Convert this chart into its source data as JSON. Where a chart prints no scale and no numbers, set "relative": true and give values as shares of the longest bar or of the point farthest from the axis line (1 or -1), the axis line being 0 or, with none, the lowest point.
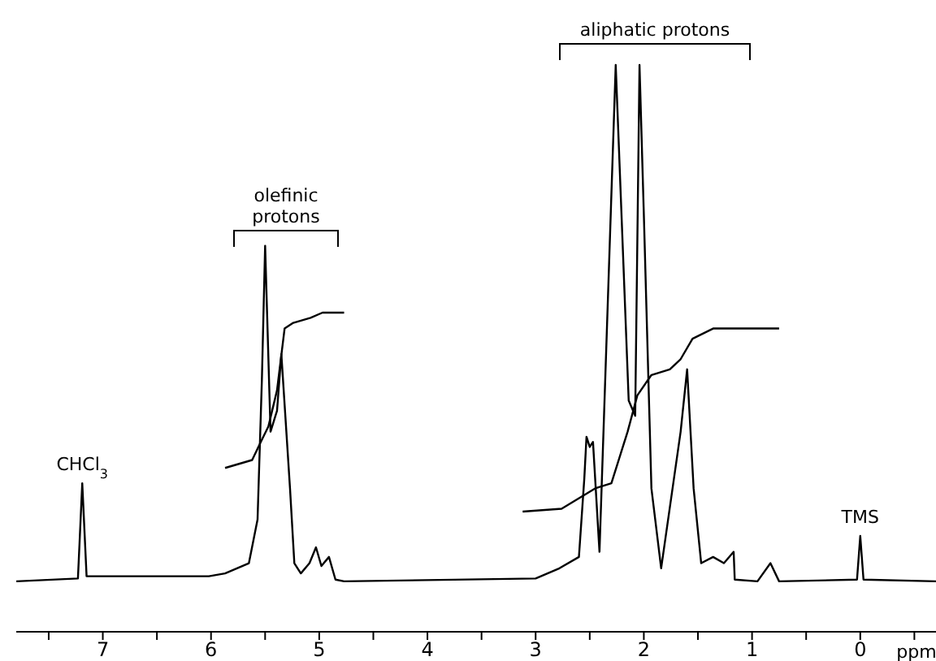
{
  "chart_data": {
    "type": "line",
    "relative": true,
    "xlabel": "ppm",
    "xlim": [
      7.8,
      -0.7
    ],
    "xticks": [
      {
        "value": 7.5,
        "label": null
      },
      7,
      {
        "value": 6.5,
        "label": null
      },
      6,
      {
        "value": 5.5,
        "label": null
      },
      5,
      {
        "value": 4.5,
        "label": null
      },
      4,
      {
        "value": 3.5,
        "label": null
      },
      3,
      {
        "value": 2.5,
        "label": null
      },
      2,
      {
        "value": 1.5,
        "label": null
      },
      1,
      {
        "value": 0.5,
        "label": null
      },
      0,
      {
        "value": -0.5,
        "label": null
      }
    ],
    "marker": "none",
    "line_style": "solid",
    "tick_labels": "x",
    "series": [
      {
        "color": "#000000",
        "x": [
          7.8,
          7.23,
          7.19,
          7.15,
          6.02,
          5.87,
          5.65,
          5.57,
          5.53,
          5.5,
          5.45,
          5.39,
          5.35,
          5.27,
          5.23,
          5.17,
          5.09,
          5.03,
          4.98,
          4.91,
          4.85,
          4.77,
          3.0,
          2.78,
          2.6,
          2.55,
          2.53,
          2.5,
          2.47,
          2.41,
          2.26,
          2.14,
          2.08,
          2.04,
          2.0,
          1.93,
          1.84,
          1.66,
          1.6,
          1.54,
          1.47,
          1.36,
          1.26,
          1.17,
          1.16,
          0.95,
          0.83,
          0.75,
          0.03,
          0,
          -0.03,
          -0.7
        ],
        "values": [
          0.089,
          0.094,
          0.262,
          0.098,
          0.098,
          0.103,
          0.121,
          0.198,
          0.444,
          0.681,
          0.353,
          0.39,
          0.49,
          0.253,
          0.121,
          0.103,
          0.121,
          0.149,
          0.116,
          0.132,
          0.092,
          0.089,
          0.094,
          0.112,
          0.132,
          0.271,
          0.344,
          0.326,
          0.335,
          0.141,
          1.0,
          0.408,
          0.381,
          1.0,
          0.736,
          0.253,
          0.112,
          0.353,
          0.463,
          0.253,
          0.121,
          0.132,
          0.121,
          0.141,
          0.092,
          0.089,
          0.121,
          0.089,
          0.092,
          0.169,
          0.092,
          0.089
        ]
      },
      {
        "color": "#000000",
        "x": [
          5.87,
          5.62,
          5.54,
          5.47,
          5.39,
          5.32,
          5.24,
          5.08,
          4.97,
          4.77
        ],
        "values": [
          0.289,
          0.303,
          0.335,
          0.362,
          0.426,
          0.535,
          0.545,
          0.554,
          0.563,
          0.563
        ]
      },
      {
        "color": "#000000",
        "x": [
          3.12,
          2.76,
          2.45,
          2.3,
          2.15,
          2.06,
          1.93,
          1.76,
          1.66,
          1.55,
          1.36,
          0.75
        ],
        "values": [
          0.212,
          0.217,
          0.253,
          0.262,
          0.353,
          0.417,
          0.453,
          0.463,
          0.481,
          0.517,
          0.535,
          0.535
        ]
      }
    ],
    "annotations": [
      {
        "text": "CHCl$_{3}$",
        "x": 7.19,
        "y": 0.262
      },
      "olefinic protons",
      "aliphatic protons",
      {
        "text": "TMS",
        "x": 0,
        "y": 0.169
      }
    ]
  }
}
